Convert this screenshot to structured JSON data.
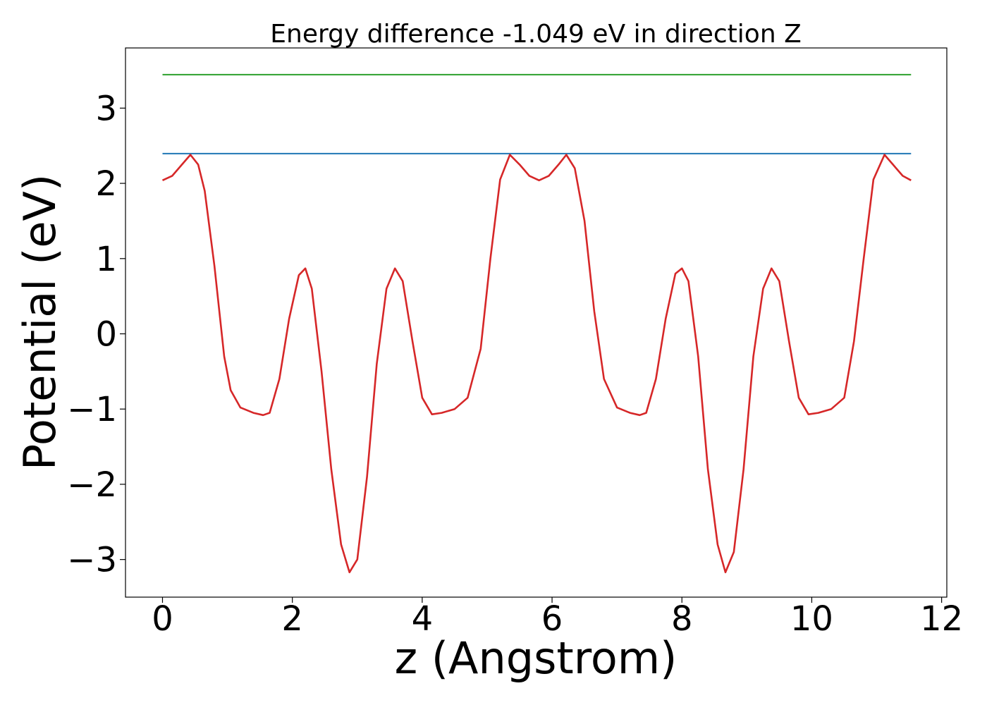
{
  "chart_data": {
    "type": "line",
    "title": "Energy difference -1.049 eV in direction Z",
    "xlabel": "z (Angstrom)",
    "ylabel": "Potential (eV)",
    "xlim": [
      -0.57,
      12.08
    ],
    "ylim": [
      -3.5,
      3.8
    ],
    "x_ticks": [
      0,
      2,
      4,
      6,
      8,
      10,
      12
    ],
    "y_ticks": [
      -3,
      -2,
      -1,
      0,
      1,
      2,
      3
    ],
    "x_tick_labels": [
      "0",
      "2",
      "4",
      "6",
      "8",
      "10",
      "12"
    ],
    "y_tick_labels": [
      "−3",
      "−2",
      "−1",
      "0",
      "1",
      "2",
      "3"
    ],
    "grid": false,
    "series": [
      {
        "color": "#2ca02c",
        "style": "horizontal",
        "x": [
          0,
          11.53
        ],
        "y": [
          3.445,
          3.445
        ]
      },
      {
        "color": "#1f77b4",
        "style": "horizontal",
        "x": [
          0,
          11.53
        ],
        "y": [
          2.395,
          2.395
        ]
      },
      {
        "color": "#d62728",
        "style": "curve",
        "x": [
          0,
          0.15,
          0.3,
          0.43,
          0.55,
          0.65,
          0.8,
          0.95,
          1.05,
          1.2,
          1.4,
          1.55,
          1.65,
          1.8,
          1.95,
          2.1,
          2.2,
          2.3,
          2.45,
          2.6,
          2.75,
          2.88,
          3.0,
          3.15,
          3.3,
          3.45,
          3.58,
          3.7,
          3.85,
          4.0,
          4.15,
          4.3,
          4.5,
          4.7,
          4.9,
          5.05,
          5.2,
          5.35,
          5.5,
          5.65,
          5.8,
          5.95,
          6.1,
          6.22,
          6.35,
          6.5,
          6.65,
          6.8,
          7.0,
          7.2,
          7.35,
          7.45,
          7.6,
          7.75,
          7.9,
          8.0,
          8.1,
          8.25,
          8.4,
          8.55,
          8.67,
          8.8,
          8.95,
          9.1,
          9.25,
          9.38,
          9.5,
          9.65,
          9.8,
          9.95,
          10.1,
          10.3,
          10.5,
          10.65,
          10.8,
          10.95,
          11.12,
          11.25,
          11.4,
          11.53
        ],
        "y": [
          2.04,
          2.1,
          2.25,
          2.38,
          2.25,
          1.9,
          0.9,
          -0.3,
          -0.75,
          -0.98,
          -1.05,
          -1.08,
          -1.05,
          -0.6,
          0.2,
          0.78,
          0.87,
          0.6,
          -0.5,
          -1.8,
          -2.8,
          -3.17,
          -3.0,
          -1.9,
          -0.4,
          0.6,
          0.87,
          0.7,
          -0.1,
          -0.85,
          -1.07,
          -1.05,
          -1.0,
          -0.85,
          -0.2,
          1.0,
          2.05,
          2.38,
          2.25,
          2.1,
          2.04,
          2.1,
          2.25,
          2.38,
          2.2,
          1.5,
          0.3,
          -0.6,
          -0.98,
          -1.05,
          -1.08,
          -1.05,
          -0.6,
          0.2,
          0.8,
          0.87,
          0.7,
          -0.3,
          -1.8,
          -2.8,
          -3.17,
          -2.9,
          -1.8,
          -0.3,
          0.6,
          0.87,
          0.7,
          -0.1,
          -0.85,
          -1.07,
          -1.05,
          -1.0,
          -0.85,
          -0.1,
          1.0,
          2.05,
          2.38,
          2.25,
          2.1,
          2.04
        ]
      }
    ]
  }
}
